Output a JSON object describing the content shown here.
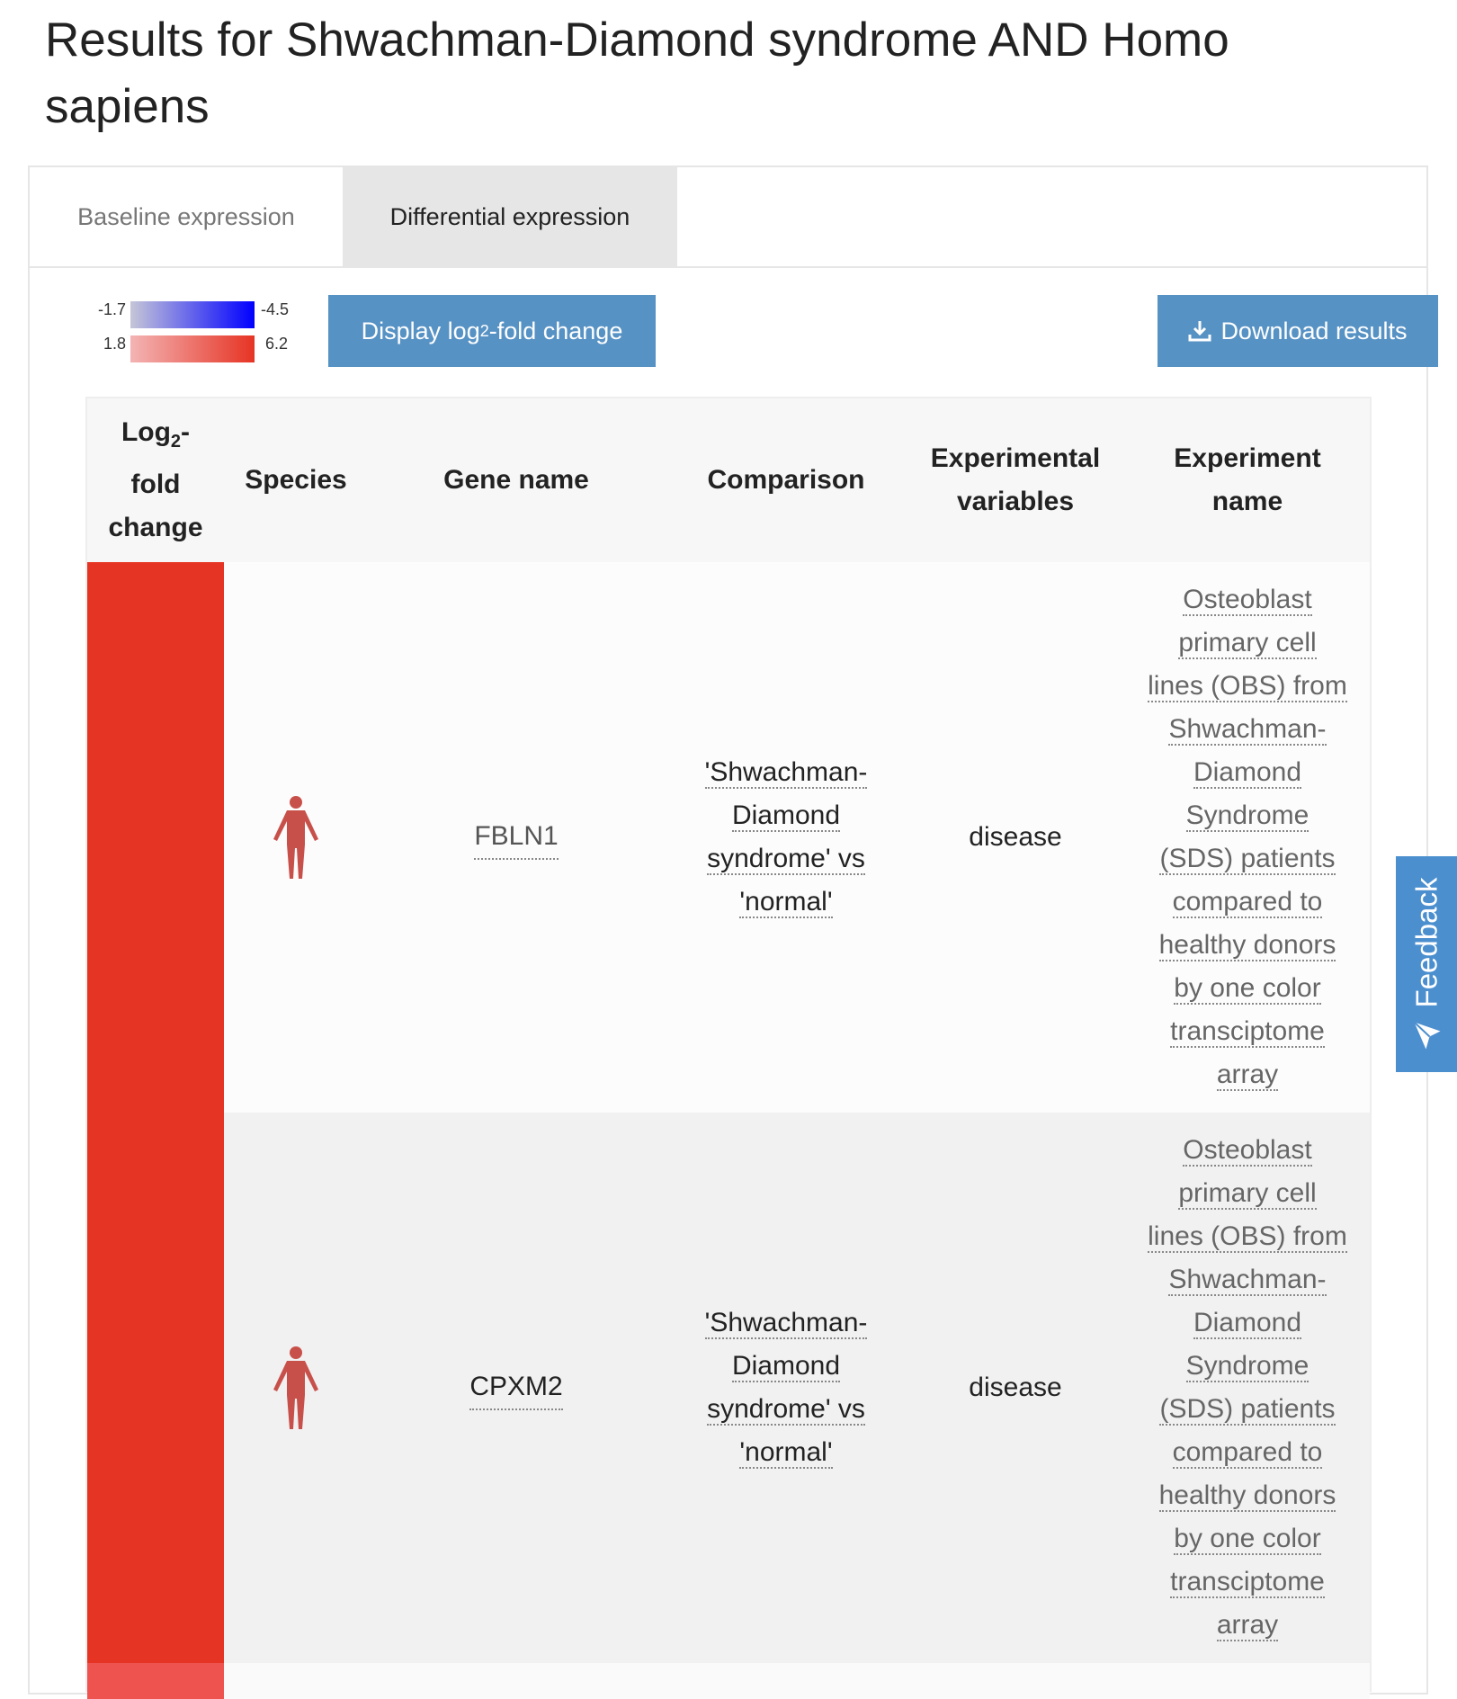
{
  "page": {
    "title": "Results for Shwachman-Diamond syndrome AND Homo sapiens"
  },
  "tabs": [
    {
      "label": "Baseline expression",
      "active": false
    },
    {
      "label": "Differential expression",
      "active": true
    }
  ],
  "legend": {
    "blue": {
      "low": "-1.7",
      "high": "-4.5",
      "from": "#c6c6d8",
      "to": "#0000ff"
    },
    "red": {
      "low": "1.8",
      "high": "6.2",
      "from": "#f3b4b4",
      "to": "#e63424"
    }
  },
  "toolbar": {
    "display_prefix": "Display log",
    "display_sub": "2",
    "display_suffix": "-fold change",
    "download_label": "Download results",
    "download_icon": "download-icon"
  },
  "table": {
    "headers": {
      "log2_prefix": "Log",
      "log2_sub": "2",
      "log2_line1_suffix": "-",
      "log2_line2": "fold",
      "log2_line3": "change",
      "species": "Species",
      "gene": "Gene name",
      "comparison": "Comparison",
      "variables_line1": "Experimental",
      "variables_line2": "variables",
      "experiment_line1": "Experiment",
      "experiment_line2": "name"
    },
    "rows": [
      {
        "heat_color": "#e63424",
        "species_icon": "human-icon",
        "gene": "FBLN1",
        "comparison": [
          "'Shwachman-",
          "Diamond",
          "syndrome' vs",
          "'normal'"
        ],
        "variable": "disease",
        "experiment": [
          "Osteoblast",
          "primary cell",
          "lines (OBS) from",
          "Shwachman-",
          "Diamond",
          "Syndrome",
          "(SDS) patients",
          "compared to",
          "healthy donors",
          "by one color",
          "transciptome",
          "array"
        ]
      },
      {
        "heat_color": "#e63424",
        "species_icon": "human-icon",
        "gene": "CPXM2",
        "comparison": [
          "'Shwachman-",
          "Diamond",
          "syndrome' vs",
          "'normal'"
        ],
        "variable": "disease",
        "experiment": [
          "Osteoblast",
          "primary cell",
          "lines (OBS) from",
          "Shwachman-",
          "Diamond",
          "Syndrome",
          "(SDS) patients",
          "compared to",
          "healthy donors",
          "by one color",
          "transciptome",
          "array"
        ]
      }
    ]
  },
  "feedback": {
    "label": "Feedback",
    "icon": "paper-plane-icon"
  }
}
